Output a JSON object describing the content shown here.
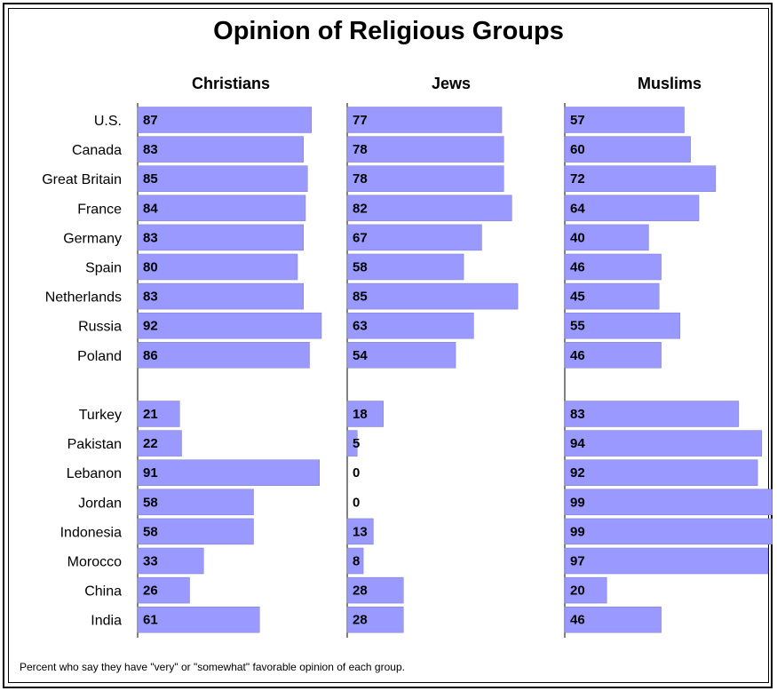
{
  "chart_data": {
    "type": "bar",
    "title": "Opinion of Religious Groups",
    "note": "Percent who say they have \"very\" or \"somewhat\" favorable opinion of each group.",
    "bar_color": "#9999ff",
    "categories": [
      "U.S.",
      "Canada",
      "Great Britain",
      "France",
      "Germany",
      "Spain",
      "Netherlands",
      "Russia",
      "Poland",
      "Turkey",
      "Pakistan",
      "Lebanon",
      "Jordan",
      "Indonesia",
      "Morocco",
      "China",
      "India"
    ],
    "series": [
      {
        "name": "Christians",
        "values": [
          87,
          83,
          85,
          84,
          83,
          80,
          83,
          92,
          86,
          21,
          22,
          91,
          58,
          58,
          33,
          26,
          61
        ]
      },
      {
        "name": "Jews",
        "values": [
          77,
          78,
          78,
          82,
          67,
          58,
          85,
          63,
          54,
          18,
          5,
          0,
          0,
          13,
          8,
          28,
          28
        ]
      },
      {
        "name": "Muslims",
        "values": [
          57,
          60,
          72,
          64,
          40,
          46,
          45,
          55,
          46,
          83,
          94,
          92,
          99,
          99,
          97,
          20,
          46
        ]
      }
    ],
    "xlim": [
      0,
      100
    ]
  }
}
